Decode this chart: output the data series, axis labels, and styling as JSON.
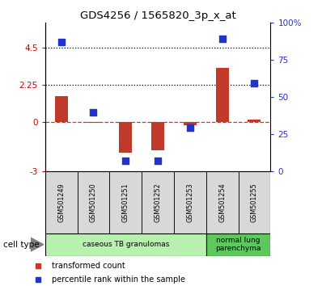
{
  "title": "GDS4256 / 1565820_3p_x_at",
  "samples": [
    "GSM501249",
    "GSM501250",
    "GSM501251",
    "GSM501252",
    "GSM501253",
    "GSM501254",
    "GSM501255"
  ],
  "transformed_count": [
    1.55,
    -0.05,
    -1.85,
    -1.7,
    -0.2,
    3.3,
    0.15
  ],
  "percentile_rank_scaled": [
    4.85,
    0.6,
    -2.35,
    -2.35,
    -0.35,
    5.05,
    2.35
  ],
  "ylim": [
    -3,
    6
  ],
  "yticks_left": [
    -3,
    0,
    2.25,
    4.5
  ],
  "yticks_right_vals": [
    0,
    25,
    50,
    75,
    100
  ],
  "yticks_right_labels": [
    "0",
    "25",
    "50",
    "75",
    "100%"
  ],
  "hlines_dotted": [
    4.5,
    2.25
  ],
  "bar_color": "#c0392b",
  "dot_color": "#2233cc",
  "cell_type_groups": [
    {
      "label": "caseous TB granulomas",
      "start": 0,
      "end": 5,
      "color": "#b8f0b0"
    },
    {
      "label": "normal lung\nparenchyma",
      "start": 5,
      "end": 7,
      "color": "#5dc85d"
    }
  ],
  "cell_type_label": "cell type",
  "legend_items": [
    {
      "color": "#c0392b",
      "label": "transformed count"
    },
    {
      "color": "#2233cc",
      "label": "percentile rank within the sample"
    }
  ],
  "left_tick_color": "#cc0000",
  "right_tick_color": "#2233cc",
  "bar_width": 0.4,
  "dot_size": 40,
  "n_samples": 7
}
